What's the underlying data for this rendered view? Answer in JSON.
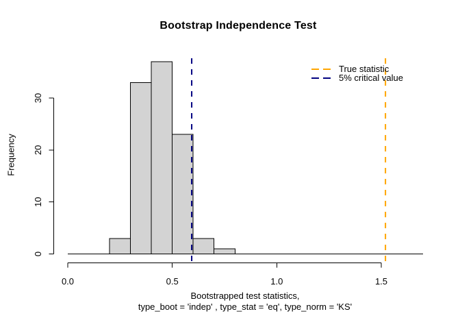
{
  "chart_data": {
    "type": "histogram",
    "title": "Bootstrap Independence Test",
    "xlabel_line1": "Bootstrapped test statistics,",
    "xlabel_line2": "type_boot = 'indep' , type_stat = 'eq', type_norm = 'KS'",
    "ylabel": "Frequency",
    "bins": {
      "breaks": [
        0.2,
        0.3,
        0.4,
        0.5,
        0.6,
        0.7,
        0.8
      ],
      "counts": [
        3,
        33,
        37,
        23,
        3,
        1
      ]
    },
    "x_ticks": {
      "values": [
        0,
        0.5,
        1.0,
        1.5
      ],
      "labels": [
        "0.0",
        "0.5",
        "1.0",
        "1.5"
      ]
    },
    "y_ticks": {
      "values": [
        0,
        10,
        20,
        30
      ],
      "labels": [
        "0",
        "10",
        "20",
        "30"
      ]
    },
    "xlim": [
      -0.07,
      1.7
    ],
    "ylim": [
      -1.6,
      38
    ],
    "grid": false,
    "background": "#ffffff",
    "bar_fill": "#d3d3d3",
    "bar_border": "#000000",
    "axis_color": "#000000",
    "baseline": {
      "y": 0,
      "x_start": 0,
      "x_end": 1.7
    },
    "vlines": [
      {
        "value": 0.593,
        "color": "#000080",
        "style": "dashed",
        "width": 2,
        "label": "5% critical value"
      },
      {
        "value": 1.52,
        "color": "#ffa500",
        "style": "dashed",
        "width": 2,
        "label": "True statistic"
      }
    ],
    "legend": {
      "position": "top-right",
      "items": [
        {
          "label": "True statistic",
          "color": "#ffa500",
          "line_style": "dashed"
        },
        {
          "label": "5% critical value",
          "color": "#000080",
          "line_style": "dashed"
        }
      ]
    }
  }
}
